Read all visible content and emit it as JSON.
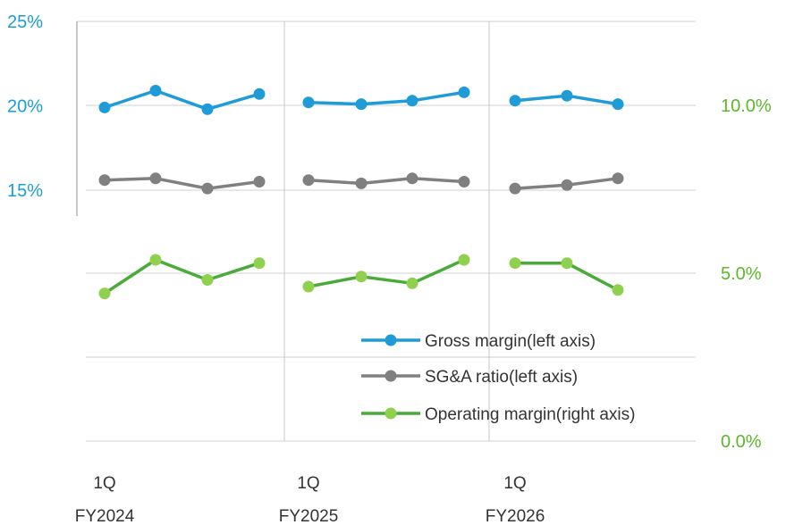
{
  "chart_data": {
    "type": "line",
    "periods": [
      {
        "fiscal_year": "FY2024",
        "quarter_label": "1Q",
        "count": 4
      },
      {
        "fiscal_year": "FY2025",
        "quarter_label": "1Q",
        "count": 4
      },
      {
        "fiscal_year": "FY2026",
        "quarter_label": "1Q",
        "count": 3
      }
    ],
    "left_axis": {
      "ticks": [
        "25%",
        "20%",
        "15%"
      ],
      "tick_values": [
        25,
        20,
        15
      ],
      "color": "#1a9fd4"
    },
    "right_axis": {
      "ticks": [
        "10.0%",
        "5.0%",
        "0.0%"
      ],
      "tick_values": [
        10,
        5,
        0
      ],
      "color": "#5cb82a"
    },
    "series": [
      {
        "name": "Gross margin(left axis)",
        "axis": "left",
        "color": "#1f9cd8",
        "values": [
          19.9,
          20.9,
          19.8,
          20.7,
          20.2,
          20.1,
          20.3,
          20.8,
          20.3,
          20.6,
          20.1
        ]
      },
      {
        "name": "SG&A ratio(left axis)",
        "axis": "left",
        "color": "#808080",
        "values": [
          15.6,
          15.7,
          15.1,
          15.5,
          15.6,
          15.4,
          15.7,
          15.5,
          15.1,
          15.3,
          15.7
        ]
      },
      {
        "name": "Operating margin(right axis)",
        "axis": "right",
        "color": "#4aaa3a",
        "marker_color": "#8fd14f",
        "values": [
          4.4,
          5.4,
          4.8,
          5.3,
          4.6,
          4.9,
          4.7,
          5.4,
          5.3,
          5.3,
          4.5
        ]
      }
    ],
    "grid": true,
    "legend_position": "bottom-right"
  }
}
